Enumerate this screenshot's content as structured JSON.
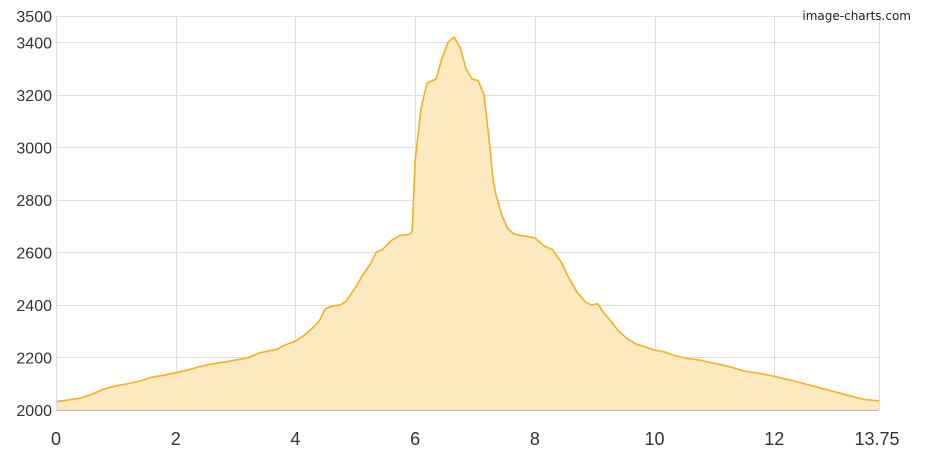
{
  "watermark": "image-charts.com",
  "chart_data": {
    "type": "area",
    "title": "",
    "xlabel": "",
    "ylabel": "",
    "xlim": [
      0,
      13.75
    ],
    "ylim": [
      2000,
      3500
    ],
    "x_ticks": [
      0,
      2,
      4,
      6,
      8,
      10,
      12,
      13.75
    ],
    "x_tick_labels": [
      "0",
      "2",
      "4",
      "6",
      "8",
      "10",
      "12",
      "13.75"
    ],
    "y_ticks": [
      2000,
      2200,
      2400,
      2600,
      2800,
      3000,
      3200,
      3400,
      3500
    ],
    "y_tick_labels": [
      "2000",
      "2200",
      "2400",
      "2600",
      "2800",
      "3000",
      "3200",
      "3400",
      "3500"
    ],
    "grid": true,
    "legend": "none",
    "colors": {
      "line": "#f5b120",
      "fill": "#fde9bf"
    },
    "series": [
      {
        "x": [
          0,
          0.2,
          0.4,
          0.6,
          0.8,
          1.0,
          1.2,
          1.4,
          1.6,
          1.8,
          2.0,
          2.2,
          2.4,
          2.6,
          2.8,
          3.0,
          3.2,
          3.4,
          3.5,
          3.7,
          3.8,
          4.0,
          4.15,
          4.3,
          4.4,
          4.5,
          4.6,
          4.75,
          4.85,
          5.0,
          5.1,
          5.25,
          5.35,
          5.45,
          5.6,
          5.75,
          5.9,
          5.95,
          6.0,
          6.1,
          6.2,
          6.25,
          6.35,
          6.45,
          6.55,
          6.65,
          6.75,
          6.85,
          6.95,
          7.05,
          7.15,
          7.25,
          7.3,
          7.35,
          7.45,
          7.55,
          7.65,
          7.75,
          7.85,
          8.0,
          8.15,
          8.3,
          8.45,
          8.55,
          8.7,
          8.85,
          8.95,
          9.05,
          9.15,
          9.3,
          9.4,
          9.55,
          9.7,
          9.85,
          10.0,
          10.15,
          10.3,
          10.5,
          10.75,
          11.0,
          11.25,
          11.5,
          11.75,
          12.0,
          12.25,
          12.5,
          12.75,
          13.0,
          13.25,
          13.5,
          13.75
        ],
        "values": [
          2032,
          2038,
          2045,
          2060,
          2080,
          2092,
          2100,
          2110,
          2125,
          2132,
          2142,
          2152,
          2165,
          2175,
          2182,
          2190,
          2198,
          2218,
          2222,
          2232,
          2245,
          2262,
          2285,
          2315,
          2340,
          2385,
          2395,
          2400,
          2415,
          2465,
          2505,
          2555,
          2600,
          2610,
          2645,
          2665,
          2668,
          2680,
          2950,
          3150,
          3245,
          3250,
          3260,
          3340,
          3400,
          3420,
          3380,
          3300,
          3260,
          3255,
          3200,
          3000,
          2880,
          2820,
          2740,
          2690,
          2670,
          2665,
          2662,
          2655,
          2625,
          2610,
          2560,
          2510,
          2450,
          2410,
          2400,
          2405,
          2370,
          2330,
          2300,
          2270,
          2250,
          2240,
          2228,
          2222,
          2210,
          2198,
          2190,
          2178,
          2165,
          2148,
          2140,
          2128,
          2115,
          2100,
          2085,
          2070,
          2055,
          2040,
          2035
        ]
      }
    ]
  }
}
